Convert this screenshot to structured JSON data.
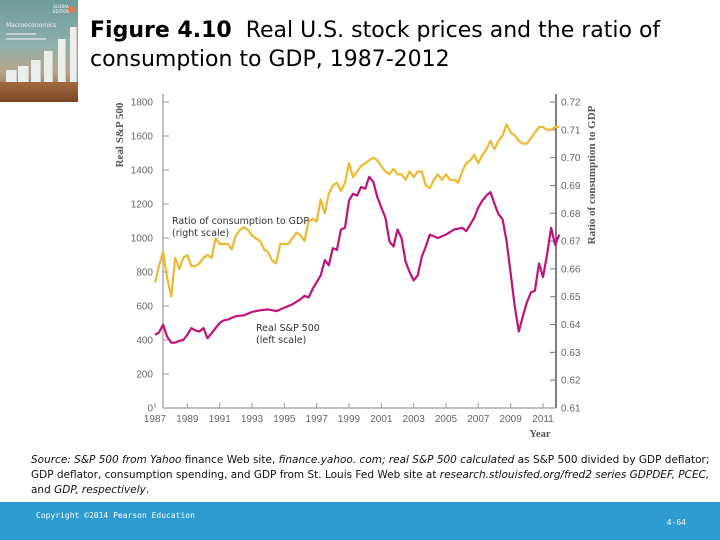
{
  "slide": {
    "title_bold": "Figure 4.10",
    "title_rest": "Real U.S. stock prices and the ratio of consumption to GDP, 1987-2012",
    "book_cover": {
      "title": "Macroeconomics",
      "badge": "GLOBAL EDITION"
    },
    "source": {
      "parts": [
        {
          "text": "Source: S&P 500 from Yahoo",
          "italic": true
        },
        {
          "text": " finance Web site, ",
          "italic": false
        },
        {
          "text": "finance.yahoo. com; real S&P 500 calculated",
          "italic": true
        },
        {
          "text": " as S&P 500 divided by GDP deflator; GDP deflator, consumption spending, and GDP from St. Louis Fed Web site at ",
          "italic": false
        },
        {
          "text": "research.stlouisfed.org/fred2 series GDPDEF, PCEC,",
          "italic": true
        },
        {
          "text": " and ",
          "italic": false
        },
        {
          "text": "GDP, respectively",
          "italic": true
        },
        {
          "text": ".",
          "italic": false
        }
      ]
    },
    "footer": {
      "copyright": "Copyright ©2014 Pearson Education",
      "page": "4-64"
    },
    "colors": {
      "sp500": "#c0127c",
      "ratio": "#f0b82e",
      "footer": "#2e9bd0"
    }
  },
  "chart_data": {
    "type": "line",
    "title": "Real U.S. stock prices and the ratio of consumption to GDP, 1987-2012",
    "xlabel": "Year",
    "ylabel": "Real S&P 500",
    "y2label": "Ratio of consumption to GDP",
    "xlim": [
      1987,
      2012.2
    ],
    "ylim": [
      0,
      1800
    ],
    "y2lim": [
      0.61,
      0.72
    ],
    "xticks": [
      1987,
      1989,
      1991,
      1993,
      1995,
      1997,
      1999,
      2001,
      2003,
      2005,
      2007,
      2009,
      2011
    ],
    "yticks": [
      0,
      200,
      400,
      600,
      800,
      1000,
      1200,
      1400,
      1600,
      1800
    ],
    "y2ticks": [
      "0.61",
      "0.62",
      "0.63",
      "0.64",
      "0.65",
      "0.66",
      "0.67",
      "0.68",
      "0.69",
      "0.70",
      "0.71",
      "0.72"
    ],
    "grid": false,
    "annotations": [
      {
        "lines": [
          "Ratio of consumption to GDP",
          "(right scale)"
        ],
        "series": "ratio"
      },
      {
        "lines": [
          "Real S&P 500",
          "(left scale)"
        ],
        "series": "sp500"
      }
    ],
    "series": [
      {
        "name": "Real S&P 500",
        "axis": "left",
        "x": [
          1987.0,
          1987.25,
          1987.5,
          1987.75,
          1988.0,
          1988.25,
          1988.5,
          1988.75,
          1989.0,
          1989.25,
          1989.5,
          1989.75,
          1990.0,
          1990.25,
          1990.5,
          1990.75,
          1991.0,
          1991.25,
          1991.5,
          1991.75,
          1992.0,
          1992.5,
          1993.0,
          1993.5,
          1994.0,
          1994.5,
          1995.0,
          1995.5,
          1996.0,
          1996.25,
          1996.5,
          1996.75,
          1997.0,
          1997.25,
          1997.5,
          1997.75,
          1998.0,
          1998.25,
          1998.5,
          1998.75,
          1999.0,
          1999.25,
          1999.5,
          1999.75,
          2000.0,
          2000.25,
          2000.5,
          2000.75,
          2001.0,
          2001.25,
          2001.5,
          2001.75,
          2002.0,
          2002.25,
          2002.5,
          2002.75,
          2003.0,
          2003.25,
          2003.5,
          2003.75,
          2004.0,
          2004.5,
          2005.0,
          2005.5,
          2006.0,
          2006.25,
          2006.5,
          2006.75,
          2007.0,
          2007.25,
          2007.5,
          2007.75,
          2008.0,
          2008.25,
          2008.5,
          2008.75,
          2009.0,
          2009.25,
          2009.5,
          2009.75,
          2010.0,
          2010.25,
          2010.5,
          2010.75,
          2011.0,
          2011.25,
          2011.5,
          2011.75,
          2012.0
        ],
        "values": [
          430,
          445,
          490,
          420,
          385,
          385,
          395,
          400,
          430,
          470,
          455,
          450,
          470,
          410,
          440,
          470,
          500,
          515,
          520,
          530,
          540,
          545,
          565,
          575,
          580,
          570,
          590,
          610,
          640,
          660,
          650,
          700,
          740,
          780,
          870,
          840,
          940,
          930,
          1050,
          1060,
          1220,
          1260,
          1250,
          1300,
          1290,
          1360,
          1330,
          1240,
          1180,
          1120,
          980,
          950,
          1050,
          1000,
          860,
          800,
          750,
          780,
          890,
          950,
          1020,
          1000,
          1020,
          1050,
          1060,
          1040,
          1080,
          1120,
          1180,
          1220,
          1250,
          1270,
          1200,
          1140,
          1110,
          980,
          790,
          600,
          450,
          540,
          620,
          680,
          690,
          850,
          770,
          900,
          1060,
          960,
          1020
        ],
        "color": "#c0127c"
      },
      {
        "name": "Ratio of consumption to GDP",
        "axis": "right",
        "x": [
          1987.0,
          1987.25,
          1987.5,
          1987.75,
          1988.0,
          1988.25,
          1988.5,
          1988.75,
          1989.0,
          1989.25,
          1989.5,
          1989.75,
          1990.0,
          1990.25,
          1990.5,
          1990.75,
          1991.0,
          1991.25,
          1991.5,
          1991.75,
          1992.0,
          1992.25,
          1992.5,
          1992.75,
          1993.0,
          1993.25,
          1993.5,
          1993.75,
          1994.0,
          1994.25,
          1994.5,
          1994.75,
          1995.0,
          1995.25,
          1995.5,
          1995.75,
          1996.0,
          1996.25,
          1996.5,
          1996.75,
          1997.0,
          1997.25,
          1997.5,
          1997.75,
          1998.0,
          1998.25,
          1998.5,
          1998.75,
          1999.0,
          1999.25,
          1999.5,
          1999.75,
          2000.0,
          2000.25,
          2000.5,
          2000.75,
          2001.0,
          2001.25,
          2001.5,
          2001.75,
          2002.0,
          2002.25,
          2002.5,
          2002.75,
          2003.0,
          2003.25,
          2003.5,
          2003.75,
          2004.0,
          2004.25,
          2004.5,
          2004.75,
          2005.0,
          2005.25,
          2005.5,
          2005.75,
          2006.0,
          2006.25,
          2006.5,
          2006.75,
          2007.0,
          2007.25,
          2007.5,
          2007.75,
          2008.0,
          2008.25,
          2008.5,
          2008.75,
          2009.0,
          2009.25,
          2009.5,
          2009.75,
          2010.0,
          2010.25,
          2010.5,
          2010.75,
          2011.0,
          2011.25,
          2011.5,
          2011.75,
          2012.0
        ],
        "values": [
          0.655,
          0.661,
          0.666,
          0.657,
          0.65,
          0.664,
          0.66,
          0.664,
          0.665,
          0.661,
          0.661,
          0.662,
          0.664,
          0.665,
          0.664,
          0.671,
          0.669,
          0.669,
          0.669,
          0.667,
          0.672,
          0.674,
          0.675,
          0.674,
          0.672,
          0.671,
          0.67,
          0.667,
          0.666,
          0.663,
          0.662,
          0.669,
          0.669,
          0.669,
          0.671,
          0.673,
          0.672,
          0.67,
          0.677,
          0.678,
          0.677,
          0.685,
          0.68,
          0.687,
          0.69,
          0.691,
          0.688,
          0.691,
          0.698,
          0.693,
          0.695,
          0.697,
          0.698,
          0.699,
          0.7,
          0.699,
          0.697,
          0.695,
          0.694,
          0.696,
          0.694,
          0.694,
          0.692,
          0.695,
          0.693,
          0.695,
          0.695,
          0.69,
          0.689,
          0.692,
          0.694,
          0.692,
          0.694,
          0.692,
          0.692,
          0.691,
          0.695,
          0.698,
          0.699,
          0.701,
          0.698,
          0.701,
          0.703,
          0.706,
          0.703,
          0.706,
          0.708,
          0.712,
          0.709,
          0.708,
          0.706,
          0.705,
          0.705,
          0.707,
          0.709,
          0.711,
          0.711,
          0.71,
          0.71,
          0.711,
          0.711
        ],
        "color": "#f0b82e"
      }
    ]
  }
}
